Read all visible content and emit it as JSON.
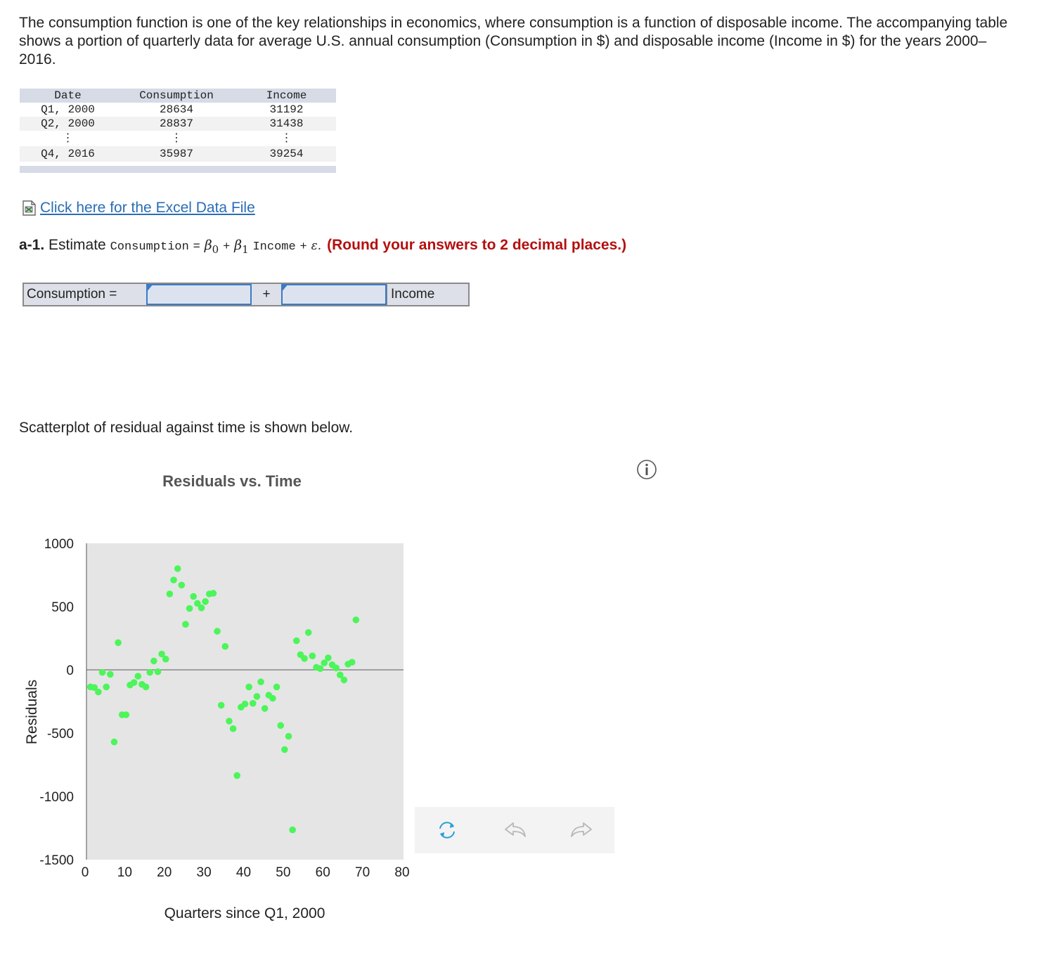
{
  "intro_text": "The consumption function is one of the key relationships in economics, where consumption is a function of disposable income. The accompanying table shows a portion of quarterly data for average U.S. annual consumption (Consumption in $) and disposable income (Income in $) for the years 2000–2016.",
  "table": {
    "headers": [
      "Date",
      "Consumption",
      "Income"
    ],
    "rows": [
      [
        "Q1, 2000",
        "28634",
        "31192"
      ],
      [
        "Q2, 2000",
        "28837",
        "31438"
      ],
      [
        "⋮",
        "⋮",
        "⋮"
      ],
      [
        "Q4, 2016",
        "35987",
        "39254"
      ]
    ]
  },
  "excel_link": {
    "label": "Click here for the Excel Data File",
    "icon": "excel-file-icon"
  },
  "question": {
    "number": "a-1.",
    "estimate": "Estimate",
    "consumption": "Consumption",
    "equals": "=",
    "beta0": "β",
    "beta0_sub": "0",
    "plus": "+",
    "beta1": "β",
    "beta1_sub": "1",
    "income": "Income",
    "plus2": "+",
    "epsilon": "ε.",
    "round_note": "(Round your answers to 2 decimal places.)"
  },
  "answer": {
    "label": "Consumption =",
    "plus": "+",
    "trailing": "Income",
    "intercept_value": "",
    "slope_value": ""
  },
  "scatter_caption": "Scatterplot of residual against time is shown below.",
  "chart_data": {
    "type": "scatter",
    "title": "Residuals vs. Time",
    "xlabel": "Quarters since Q1, 2000",
    "ylabel": "Residuals",
    "xlim": [
      0,
      80
    ],
    "ylim": [
      -1500,
      1000
    ],
    "xticks": [
      0,
      10,
      20,
      30,
      40,
      50,
      60,
      70,
      80
    ],
    "yticks": [
      1000,
      500,
      0,
      -500,
      -1000,
      -1500
    ],
    "point_color": "#4cf55a",
    "background": "#e5e5e5",
    "zero_line": true,
    "points": [
      [
        1,
        -135
      ],
      [
        2,
        -140
      ],
      [
        3,
        -175
      ],
      [
        4,
        -20
      ],
      [
        5,
        -135
      ],
      [
        6,
        -35
      ],
      [
        7,
        -570
      ],
      [
        8,
        215
      ],
      [
        9,
        -355
      ],
      [
        10,
        -355
      ],
      [
        11,
        -120
      ],
      [
        12,
        -100
      ],
      [
        13,
        -50
      ],
      [
        14,
        -115
      ],
      [
        15,
        -135
      ],
      [
        16,
        -20
      ],
      [
        17,
        70
      ],
      [
        18,
        -15
      ],
      [
        19,
        125
      ],
      [
        20,
        85
      ],
      [
        21,
        600
      ],
      [
        22,
        710
      ],
      [
        23,
        800
      ],
      [
        24,
        670
      ],
      [
        25,
        360
      ],
      [
        26,
        485
      ],
      [
        27,
        580
      ],
      [
        28,
        525
      ],
      [
        29,
        490
      ],
      [
        30,
        540
      ],
      [
        31,
        600
      ],
      [
        32,
        605
      ],
      [
        33,
        305
      ],
      [
        34,
        -280
      ],
      [
        35,
        185
      ],
      [
        36,
        -405
      ],
      [
        37,
        -465
      ],
      [
        38,
        -835
      ],
      [
        39,
        -295
      ],
      [
        40,
        -270
      ],
      [
        41,
        -135
      ],
      [
        42,
        -265
      ],
      [
        43,
        -210
      ],
      [
        44,
        -95
      ],
      [
        45,
        -305
      ],
      [
        46,
        -200
      ],
      [
        47,
        -225
      ],
      [
        48,
        -135
      ],
      [
        49,
        -440
      ],
      [
        50,
        -630
      ],
      [
        51,
        -525
      ],
      [
        52,
        -1265
      ],
      [
        53,
        230
      ],
      [
        54,
        120
      ],
      [
        55,
        90
      ],
      [
        56,
        295
      ],
      [
        57,
        110
      ],
      [
        58,
        20
      ],
      [
        59,
        10
      ],
      [
        60,
        55
      ],
      [
        61,
        95
      ],
      [
        62,
        40
      ],
      [
        63,
        15
      ],
      [
        64,
        -40
      ],
      [
        65,
        -80
      ],
      [
        66,
        45
      ],
      [
        67,
        60
      ],
      [
        68,
        395
      ]
    ]
  },
  "toolbar": {
    "buttons": [
      {
        "name": "reset-icon",
        "color": "#2a9fd6"
      },
      {
        "name": "undo-icon",
        "color": "#b8b8b8"
      },
      {
        "name": "redo-icon",
        "color": "#b8b8b8"
      }
    ]
  },
  "info_icon": "info-icon"
}
